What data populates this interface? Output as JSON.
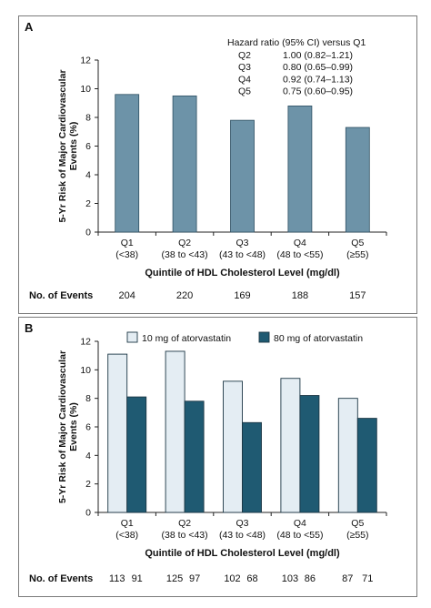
{
  "colors": {
    "panel_a_bar": "#6d93a8",
    "atorva_10": "#e4edf3",
    "atorva_80": "#1f5a72",
    "frame": "#7a7a7a"
  },
  "chart_data": [
    {
      "type": "bar",
      "panel": "A",
      "categories": [
        "Q1",
        "Q2",
        "Q3",
        "Q4",
        "Q5"
      ],
      "category_ranges": [
        "(<38)",
        "(38 to <43)",
        "(43 to <48)",
        "(48 to <55)",
        "(≥55)"
      ],
      "values": [
        9.6,
        9.5,
        7.8,
        8.8,
        7.3
      ],
      "ylabel": "5-Yr Risk of Major Cardiovascular Events (%)",
      "ylabel_lines": [
        "5-Yr Risk of Major Cardiovascular",
        "Events (%)"
      ],
      "xlabel": "Quintile of HDL Cholesterol Level (mg/dl)",
      "ylim": [
        0,
        12
      ],
      "yticks": [
        "0",
        "2",
        "4",
        "6",
        "8",
        "10",
        "12"
      ],
      "hazard_ratio": {
        "title": "Hazard ratio (95% CI) versus Q1",
        "rows": [
          {
            "q": "Q2",
            "text": "1.00 (0.82–1.21)"
          },
          {
            "q": "Q3",
            "text": "0.80 (0.65–0.99)"
          },
          {
            "q": "Q4",
            "text": "0.92 (0.74–1.13)"
          },
          {
            "q": "Q5",
            "text": "0.75 (0.60–0.95)"
          }
        ]
      },
      "events_label": "No. of Events",
      "events": [
        "204",
        "220",
        "169",
        "188",
        "157"
      ]
    },
    {
      "type": "bar",
      "panel": "B",
      "categories": [
        "Q1",
        "Q2",
        "Q3",
        "Q4",
        "Q5"
      ],
      "category_ranges": [
        "(<38)",
        "(38 to <43)",
        "(43 to <48)",
        "(48 to <55)",
        "(≥55)"
      ],
      "series": [
        {
          "name": "10 mg of atorvastatin",
          "values": [
            11.1,
            11.3,
            9.2,
            9.4,
            8.0
          ]
        },
        {
          "name": "80 mg of atorvastatin",
          "values": [
            8.1,
            7.8,
            6.3,
            8.2,
            6.6
          ]
        }
      ],
      "ylabel": "5-Yr Risk of Major Cardiovascular Events (%)",
      "ylabel_lines": [
        "5-Yr Risk of Major Cardiovascular",
        "Events (%)"
      ],
      "xlabel": "Quintile of HDL Cholesterol Level (mg/dl)",
      "ylim": [
        0,
        12
      ],
      "yticks": [
        "0",
        "2",
        "4",
        "6",
        "8",
        "10",
        "12"
      ],
      "legend_position": "top",
      "events_label": "No. of Events",
      "events": [
        [
          "113",
          "91"
        ],
        [
          "125",
          "97"
        ],
        [
          "102",
          "68"
        ],
        [
          "103",
          "86"
        ],
        [
          "87",
          "71"
        ]
      ]
    }
  ]
}
